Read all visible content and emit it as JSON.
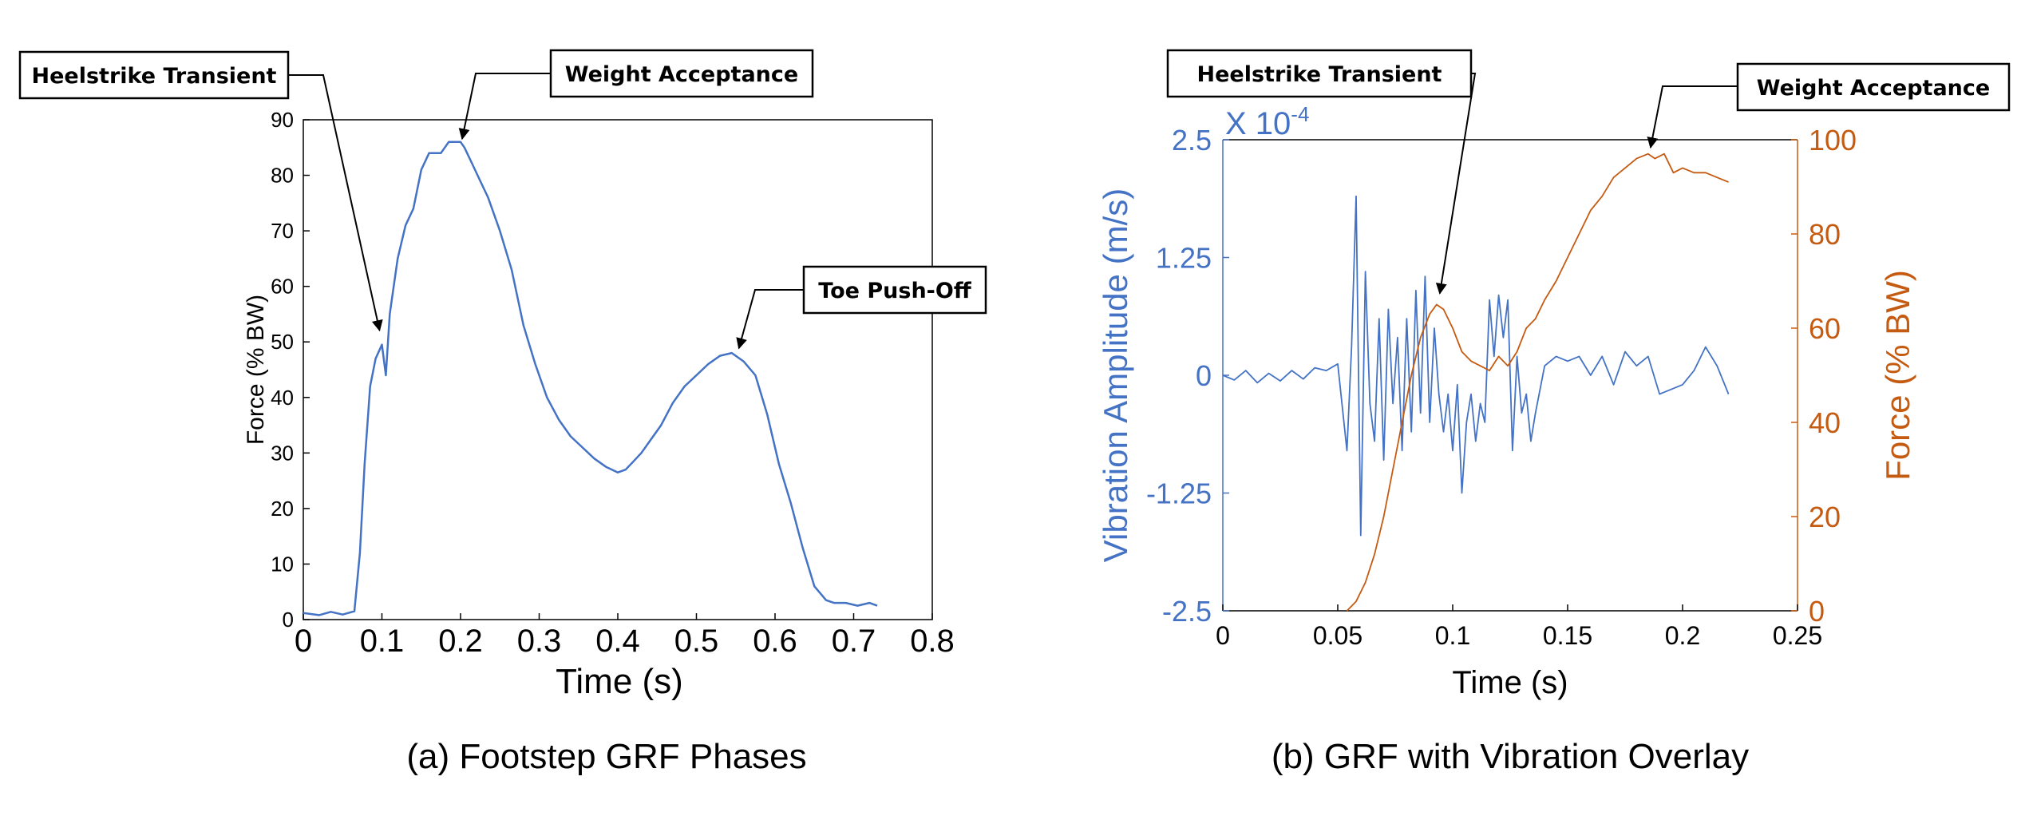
{
  "colors": {
    "blue": "#4472c4",
    "orange": "#c55a11",
    "axis": "#000000",
    "blue_text": "#4472c4"
  },
  "chart_data": [
    {
      "type": "line",
      "caption": "(a) Footstep GRF Phases",
      "xlabel": "Time (s)",
      "ylabel": "Force (% BW)",
      "xlim": [
        0,
        0.8
      ],
      "ylim": [
        0,
        90
      ],
      "xticks": [
        "0",
        "0.1",
        "0.2",
        "0.3",
        "0.4",
        "0.5",
        "0.6",
        "0.7",
        "0.8"
      ],
      "yticks": [
        "0",
        "10",
        "20",
        "30",
        "40",
        "50",
        "60",
        "70",
        "80",
        "90"
      ],
      "grid": false,
      "series": [
        {
          "color": "#4472c4",
          "x": [
            0,
            0.02,
            0.035,
            0.05,
            0.065,
            0.072,
            0.078,
            0.085,
            0.092,
            0.1,
            0.105,
            0.11,
            0.12,
            0.13,
            0.14,
            0.15,
            0.16,
            0.175,
            0.185,
            0.195,
            0.2,
            0.205,
            0.215,
            0.225,
            0.235,
            0.25,
            0.265,
            0.28,
            0.295,
            0.31,
            0.325,
            0.34,
            0.355,
            0.37,
            0.385,
            0.4,
            0.41,
            0.42,
            0.43,
            0.44,
            0.455,
            0.47,
            0.485,
            0.5,
            0.515,
            0.53,
            0.545,
            0.56,
            0.575,
            0.59,
            0.605,
            0.62,
            0.635,
            0.65,
            0.665,
            0.675,
            0.69,
            0.705,
            0.72,
            0.73
          ],
          "y": [
            1.2,
            0.8,
            1.4,
            0.9,
            1.5,
            12,
            28,
            42,
            47,
            49.5,
            44,
            55,
            65,
            71,
            74,
            81,
            84,
            84,
            86,
            86,
            86,
            85,
            82,
            79,
            76,
            70,
            63,
            53,
            46,
            40,
            36,
            33,
            31,
            29,
            27.5,
            26.5,
            27,
            28.5,
            30,
            32,
            35,
            39,
            42,
            44,
            46,
            47.5,
            48,
            46.5,
            44,
            37,
            28,
            21,
            13,
            6,
            3.5,
            3,
            3,
            2.5,
            3,
            2.5
          ]
        }
      ],
      "annotations": [
        {
          "text": "Heelstrike Transient",
          "x": 0.1,
          "y": 49.5
        },
        {
          "text": "Weight Acceptance",
          "x": 0.2,
          "y": 86
        },
        {
          "text": "Toe Push-Off",
          "x": 0.55,
          "y": 48
        }
      ]
    },
    {
      "type": "line",
      "caption": "(b) GRF with Vibration Overlay",
      "xlabel": "Time (s)",
      "ylabel_left": "Vibration Amplitude (m/s)",
      "ylabel_right": "Force (% BW)",
      "exponent_label": "X 10",
      "exponent_power": "-4",
      "xlim": [
        0,
        0.25
      ],
      "ylim_left": [
        -2.5,
        2.5
      ],
      "ylim_right": [
        0,
        100
      ],
      "xticks": [
        "0",
        "0.05",
        "0.1",
        "0.15",
        "0.2",
        "0.25"
      ],
      "yticks_left": [
        "-2.5",
        "-1.25",
        "0",
        "1.25",
        "2.5"
      ],
      "yticks_right": [
        "0",
        "20",
        "40",
        "60",
        "80",
        "100"
      ],
      "grid": false,
      "series": [
        {
          "axis": "left",
          "color": "#4472c4",
          "x": [
            0,
            0.005,
            0.01,
            0.015,
            0.02,
            0.025,
            0.03,
            0.035,
            0.04,
            0.045,
            0.05,
            0.054,
            0.056,
            0.058,
            0.06,
            0.062,
            0.064,
            0.066,
            0.068,
            0.07,
            0.072,
            0.074,
            0.076,
            0.078,
            0.08,
            0.082,
            0.084,
            0.086,
            0.088,
            0.09,
            0.092,
            0.094,
            0.096,
            0.098,
            0.1,
            0.102,
            0.104,
            0.106,
            0.108,
            0.11,
            0.112,
            0.114,
            0.116,
            0.118,
            0.12,
            0.122,
            0.124,
            0.126,
            0.128,
            0.13,
            0.132,
            0.134,
            0.136,
            0.14,
            0.145,
            0.15,
            0.155,
            0.16,
            0.165,
            0.17,
            0.175,
            0.18,
            0.185,
            0.19,
            0.195,
            0.2,
            0.205,
            0.21,
            0.215,
            0.22
          ],
          "y": [
            0.0,
            -0.05,
            0.05,
            -0.08,
            0.02,
            -0.06,
            0.05,
            -0.04,
            0.08,
            0.05,
            0.12,
            -0.8,
            0.3,
            1.9,
            -1.7,
            1.1,
            -0.3,
            -0.7,
            0.6,
            -0.9,
            0.7,
            -0.3,
            0.4,
            -0.8,
            0.6,
            -0.6,
            0.9,
            -0.4,
            1.05,
            -0.5,
            0.5,
            -0.2,
            -0.6,
            -0.2,
            -0.8,
            -0.1,
            -1.25,
            -0.5,
            -0.2,
            -0.7,
            -0.3,
            -0.5,
            0.8,
            0.2,
            0.85,
            0.4,
            0.8,
            -0.8,
            0.2,
            -0.4,
            -0.2,
            -0.7,
            -0.4,
            0.1,
            0.2,
            0.15,
            0.2,
            0.0,
            0.2,
            -0.1,
            0.25,
            0.1,
            0.2,
            -0.2,
            -0.15,
            -0.1,
            0.05,
            0.3,
            0.1,
            -0.2
          ]
        },
        {
          "axis": "right",
          "color": "#c55a11",
          "x": [
            0.054,
            0.058,
            0.062,
            0.066,
            0.07,
            0.074,
            0.078,
            0.082,
            0.086,
            0.09,
            0.093,
            0.096,
            0.1,
            0.104,
            0.108,
            0.112,
            0.116,
            0.12,
            0.124,
            0.128,
            0.132,
            0.136,
            0.14,
            0.145,
            0.15,
            0.155,
            0.16,
            0.165,
            0.17,
            0.175,
            0.18,
            0.185,
            0.188,
            0.192,
            0.196,
            0.2,
            0.205,
            0.21,
            0.215,
            0.22
          ],
          "y": [
            0,
            2,
            6,
            12,
            20,
            30,
            40,
            50,
            58,
            63,
            65,
            64,
            60,
            55,
            53,
            52,
            51,
            54,
            52,
            55,
            60,
            62,
            66,
            70,
            75,
            80,
            85,
            88,
            92,
            94,
            96,
            97,
            96,
            97,
            93,
            94,
            93,
            93,
            92,
            91
          ]
        }
      ],
      "annotations": [
        {
          "text": "Heelstrike Transient",
          "x": 0.093,
          "y": 65
        },
        {
          "text": "Weight Acceptance",
          "x": 0.184,
          "y": 97
        }
      ]
    }
  ]
}
